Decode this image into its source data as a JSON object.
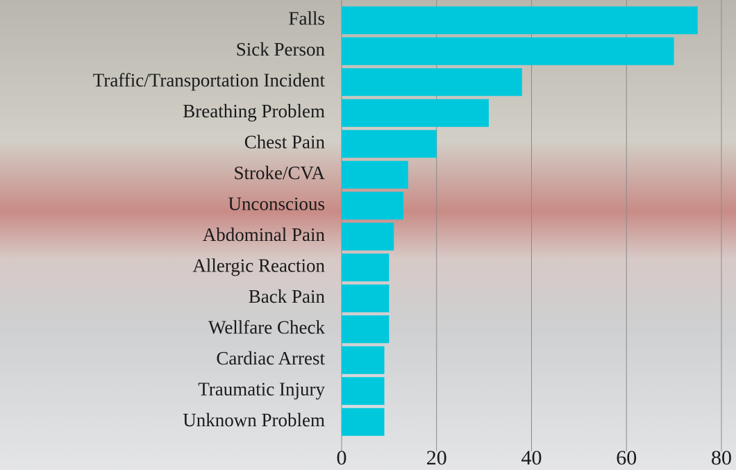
{
  "chart_data": {
    "type": "barh",
    "categories": [
      "Falls",
      "Sick Person",
      "Traffic/Transportation Incident",
      "Breathing Problem",
      "Chest Pain",
      "Stroke/CVA",
      "Unconscious",
      "Abdominal Pain",
      "Allergic Reaction",
      "Back Pain",
      "Wellfare Check",
      "Cardiac Arrest",
      "Traumatic Injury",
      "Unknown Problem"
    ],
    "values": [
      75,
      70,
      38,
      31,
      20,
      14,
      13,
      11,
      10,
      10,
      10,
      9,
      9,
      9
    ],
    "color": "#00c8dc",
    "xlim": [
      0,
      80
    ],
    "xticks": [
      0,
      20,
      40,
      60,
      80
    ],
    "grid": true
  }
}
